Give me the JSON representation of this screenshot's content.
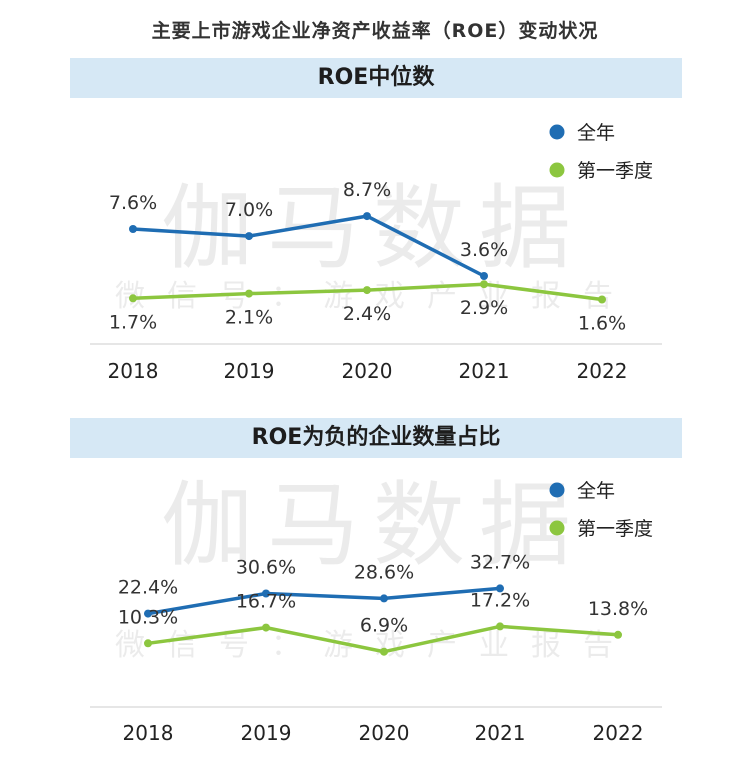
{
  "title": "主要上市游戏企业净资产收益率（ROE）变动状况",
  "watermark": {
    "main": "伽马数据",
    "sub": "微信号：游戏产业报告"
  },
  "colors": {
    "full_year": "#1f6db3",
    "q1": "#8cc63f",
    "band": "#d6e8f5"
  },
  "chart_data": [
    {
      "type": "line",
      "title": "ROE中位数",
      "categories": [
        "2018",
        "2019",
        "2020",
        "2021",
        "2022"
      ],
      "series": [
        {
          "name": "全年",
          "values": [
            7.6,
            7.0,
            8.7,
            3.6,
            null
          ],
          "labels": [
            "7.6%",
            "7.0%",
            "8.7%",
            "3.6%",
            ""
          ]
        },
        {
          "name": "第一季度",
          "values": [
            1.7,
            2.1,
            2.4,
            2.9,
            1.6
          ],
          "labels": [
            "1.7%",
            "2.1%",
            "2.4%",
            "2.9%",
            "1.6%"
          ]
        }
      ],
      "legend_position": "top-right",
      "grid": false
    },
    {
      "type": "line",
      "title": "ROE为负的企业数量占比",
      "categories": [
        "2018",
        "2019",
        "2020",
        "2021",
        "2022"
      ],
      "series": [
        {
          "name": "全年",
          "values": [
            22.4,
            30.6,
            28.6,
            32.7,
            null
          ],
          "labels": [
            "22.4%",
            "30.6%",
            "28.6%",
            "32.7%",
            ""
          ]
        },
        {
          "name": "第一季度",
          "values": [
            10.3,
            16.7,
            6.9,
            17.2,
            13.8
          ],
          "labels": [
            "10.3%",
            "16.7%",
            "6.9%",
            "17.2%",
            "13.8%"
          ]
        }
      ],
      "legend_position": "top-right",
      "grid": false
    }
  ]
}
